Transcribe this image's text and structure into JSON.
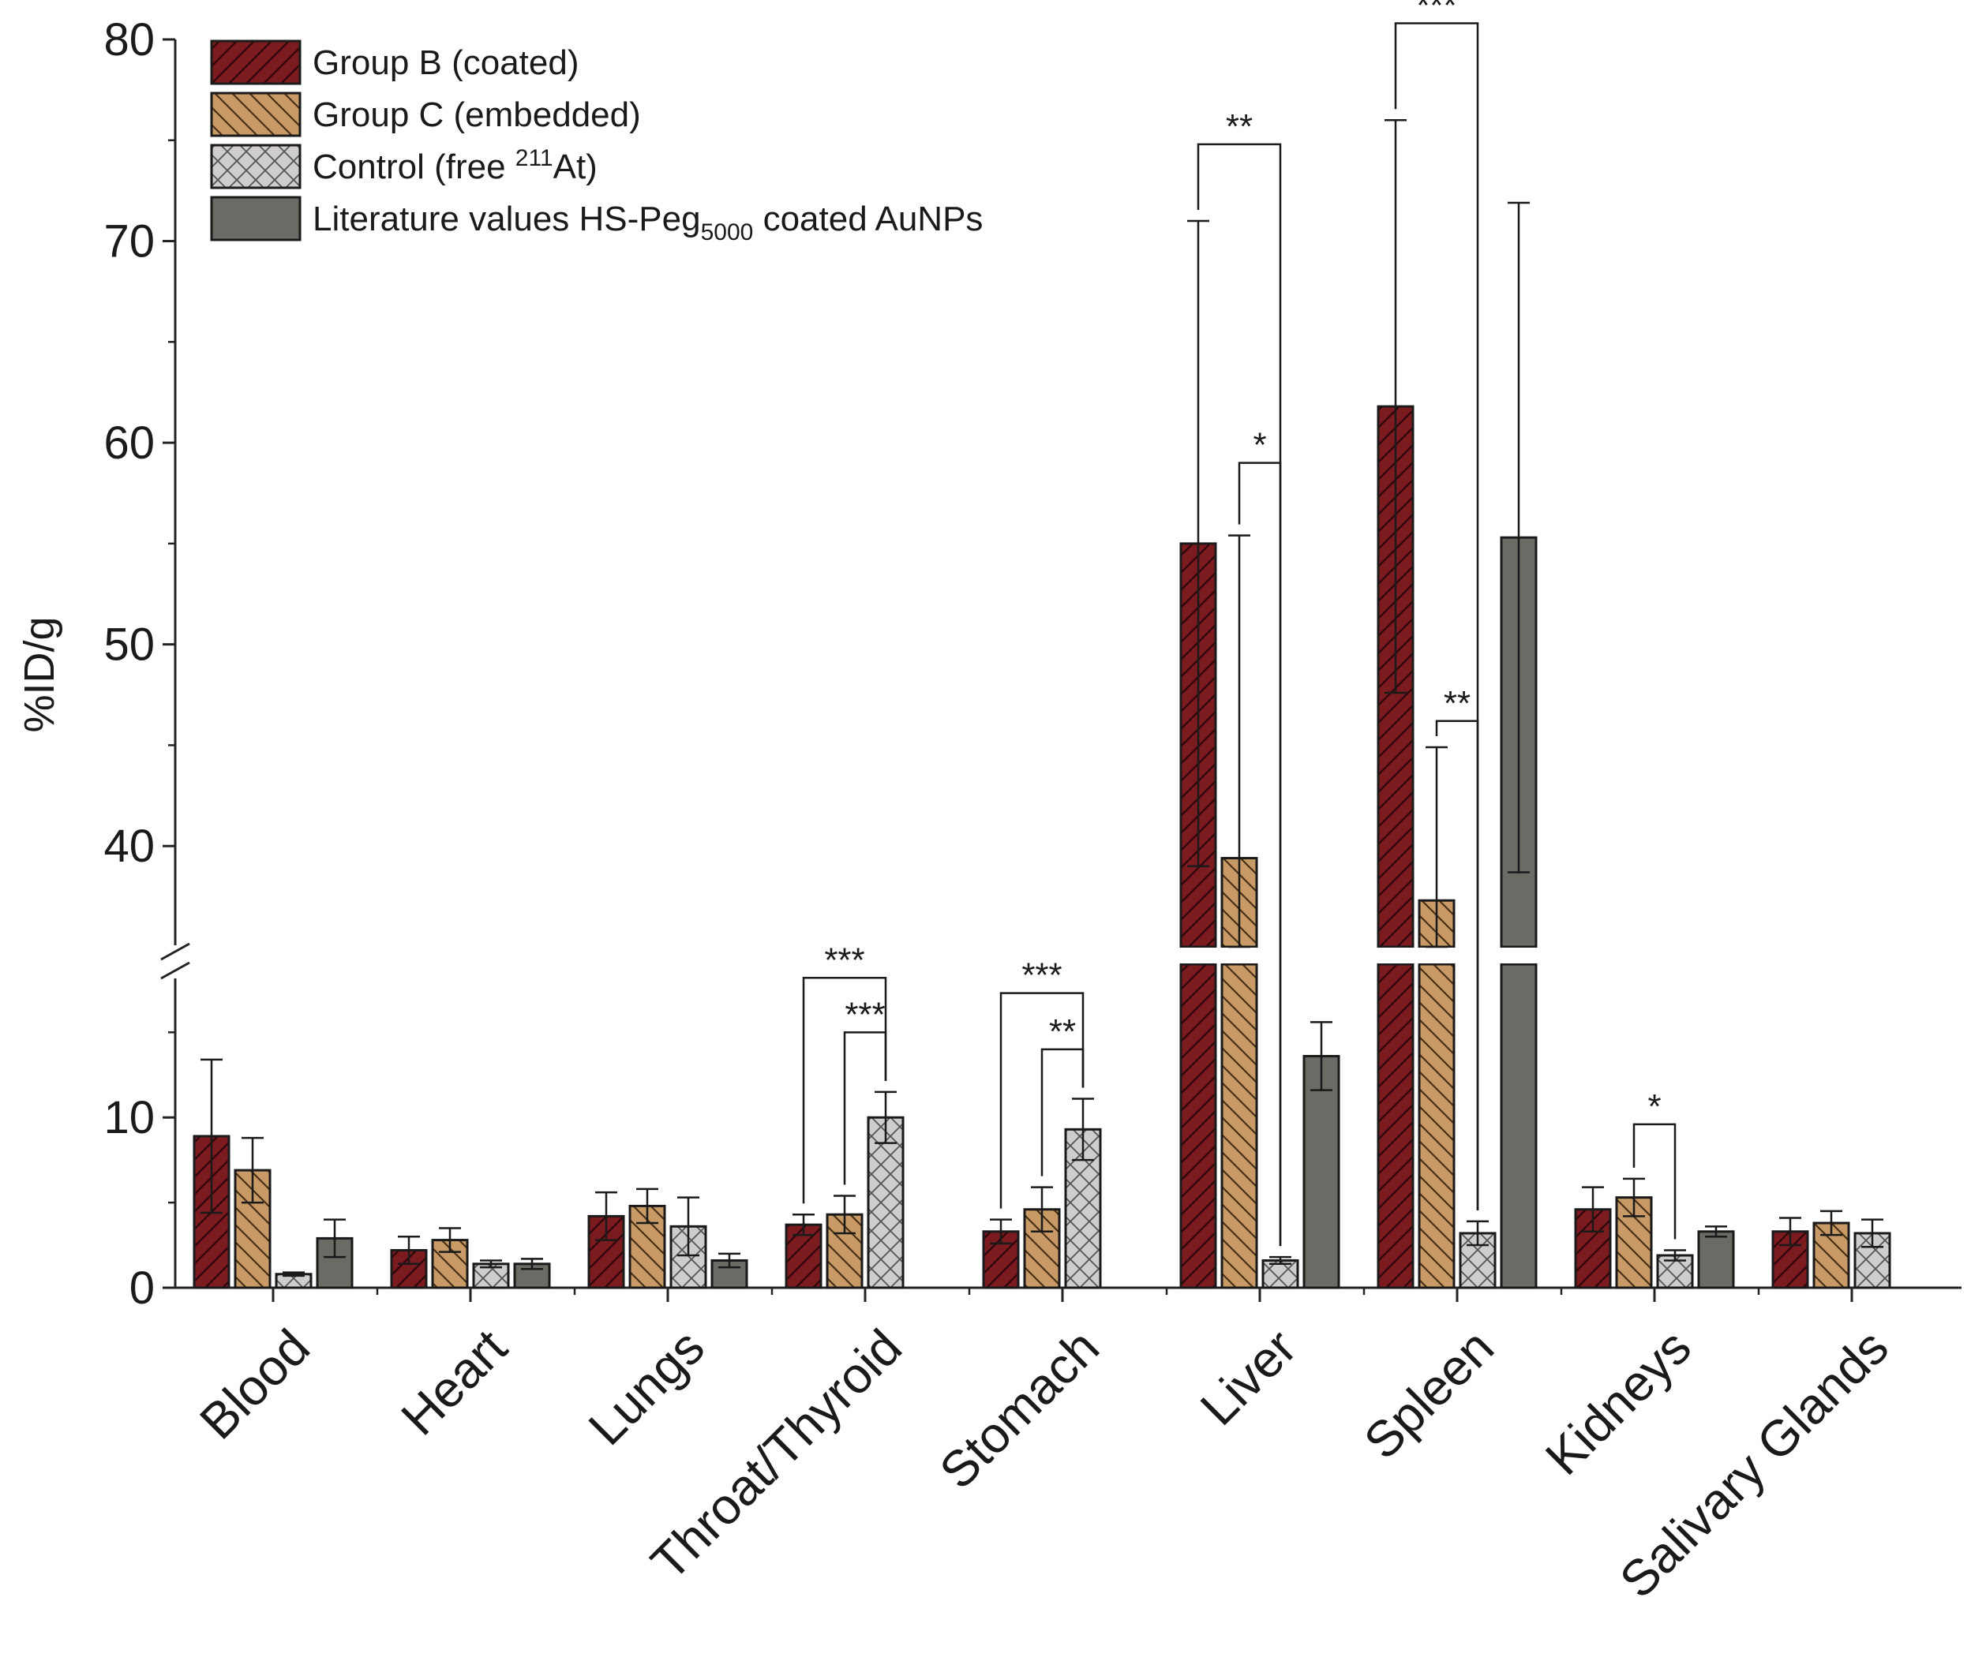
{
  "chart_data": {
    "type": "bar",
    "title": "",
    "xlabel": "",
    "ylabel": "%ID/g",
    "axis_break": {
      "lower_range": [
        0,
        19
      ],
      "upper_range": [
        35,
        80
      ]
    },
    "lower_ticks": [
      "0",
      "10"
    ],
    "upper_ticks": [
      "40",
      "50",
      "60",
      "70",
      "80"
    ],
    "lower_tick_values": [
      0,
      10
    ],
    "upper_tick_values": [
      40,
      50,
      60,
      70,
      80
    ],
    "categories": [
      "Blood",
      "Heart",
      "Lungs",
      "Throat/Thyroid",
      "Stomach",
      "Liver",
      "Spleen",
      "Kidneys",
      "Salivary Glands"
    ],
    "legend": [
      {
        "id": "b",
        "prefix": "Group B (coated)",
        "sup": "",
        "sub": "",
        "suffix": ""
      },
      {
        "id": "c",
        "prefix": "Group C (embedded)",
        "sup": "",
        "sub": "",
        "suffix": ""
      },
      {
        "id": "ctrl",
        "prefix": "Control (free ",
        "sup": "211",
        "sub": "",
        "suffix": "At)"
      },
      {
        "id": "lit",
        "prefix": "Literature values HS-Peg",
        "sup": "",
        "sub": "5000",
        "suffix": " coated AuNPs"
      }
    ],
    "series": [
      {
        "name": "Group B (coated)",
        "color": "#7b1a1f",
        "pattern": "diag-up",
        "values": [
          8.9,
          2.2,
          4.2,
          3.7,
          3.3,
          55.0,
          61.8,
          4.6,
          3.3
        ],
        "errors": [
          4.5,
          0.8,
          1.4,
          0.6,
          0.7,
          16.0,
          14.2,
          1.3,
          0.8
        ]
      },
      {
        "name": "Group C (embedded)",
        "color": "#c89a66",
        "pattern": "diag-down",
        "values": [
          6.9,
          2.8,
          4.8,
          4.3,
          4.6,
          39.4,
          37.3,
          5.3,
          3.8
        ],
        "errors": [
          1.9,
          0.7,
          1.0,
          1.1,
          1.3,
          16.0,
          7.6,
          1.1,
          0.7
        ]
      },
      {
        "name": "Control (free 211At)",
        "color": "#cfcccc",
        "pattern": "cross",
        "values": [
          0.8,
          1.4,
          3.6,
          10.0,
          9.3,
          1.6,
          3.2,
          1.9,
          3.2
        ],
        "errors": [
          0.1,
          0.2,
          1.7,
          1.5,
          1.8,
          0.2,
          0.7,
          0.3,
          0.8
        ]
      },
      {
        "name": "Literature values HS-Peg5000 coated AuNPs",
        "color": "#6b6b66",
        "pattern": "none",
        "values": [
          2.9,
          1.4,
          1.6,
          null,
          null,
          13.6,
          55.3,
          3.3,
          null
        ],
        "errors": [
          1.1,
          0.3,
          0.4,
          null,
          null,
          2.0,
          16.6,
          0.3,
          null
        ]
      }
    ],
    "significance": [
      {
        "category": "Throat/Thyroid",
        "from": 0,
        "to": 2,
        "label": "***",
        "y": 18.2
      },
      {
        "category": "Throat/Thyroid",
        "from": 1,
        "to": 2,
        "label": "***",
        "y": 15.0
      },
      {
        "category": "Stomach",
        "from": 0,
        "to": 2,
        "label": "***",
        "y": 17.3
      },
      {
        "category": "Stomach",
        "from": 1,
        "to": 2,
        "label": "**",
        "y": 14.0
      },
      {
        "category": "Liver",
        "from": 0,
        "to": 2,
        "label": "**",
        "y": 74.8
      },
      {
        "category": "Liver",
        "from": 1,
        "to": 2,
        "label": "*",
        "y": 59.0
      },
      {
        "category": "Spleen",
        "from": 0,
        "to": 2,
        "label": "***",
        "y": 80.8
      },
      {
        "category": "Spleen",
        "from": 1,
        "to": 2,
        "label": "**",
        "y": 46.2
      },
      {
        "category": "Kidneys",
        "from": 1,
        "to": 2,
        "label": "*",
        "y": 9.6
      }
    ]
  }
}
